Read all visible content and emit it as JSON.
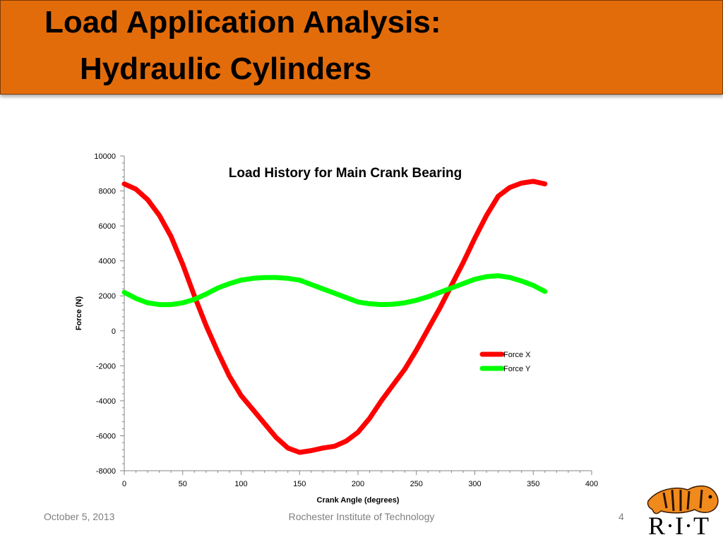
{
  "slide": {
    "title_line1": "Load Application Analysis:",
    "title_line2": "Hydraulic Cylinders",
    "footer_date": "October 5, 2013",
    "footer_org": "Rochester Institute of Technology",
    "page_number": "4",
    "logo_text": "R·I·T",
    "accent_color": "#e36c0a"
  },
  "chart_data": {
    "type": "line",
    "title": "Load History for Main Crank Bearing",
    "xlabel": "Crank Angle (degrees)",
    "ylabel": "Force (N)",
    "xlim": [
      0,
      400
    ],
    "ylim": [
      -8000,
      10000
    ],
    "x_ticks": [
      0,
      50,
      100,
      150,
      200,
      250,
      300,
      350,
      400
    ],
    "y_ticks": [
      -8000,
      -6000,
      -4000,
      -2000,
      0,
      2000,
      4000,
      6000,
      8000,
      10000
    ],
    "grid": false,
    "legend_position": "right",
    "series": [
      {
        "name": "Force X",
        "color": "#ff0000",
        "x": [
          0,
          10,
          20,
          30,
          40,
          50,
          60,
          70,
          80,
          90,
          100,
          110,
          120,
          130,
          140,
          150,
          160,
          170,
          180,
          190,
          200,
          210,
          220,
          230,
          240,
          250,
          260,
          270,
          280,
          290,
          300,
          310,
          320,
          330,
          340,
          350,
          360
        ],
        "y": [
          8400,
          8100,
          7500,
          6600,
          5400,
          3800,
          2000,
          300,
          -1200,
          -2600,
          -3700,
          -4500,
          -5300,
          -6100,
          -6700,
          -6950,
          -6850,
          -6700,
          -6600,
          -6300,
          -5800,
          -5000,
          -4000,
          -3100,
          -2200,
          -1100,
          100,
          1300,
          2600,
          3900,
          5300,
          6600,
          7700,
          8200,
          8450,
          8550,
          8400
        ]
      },
      {
        "name": "Force Y",
        "color": "#00ff00",
        "x": [
          0,
          10,
          20,
          30,
          40,
          50,
          60,
          70,
          80,
          90,
          100,
          110,
          120,
          130,
          140,
          150,
          160,
          170,
          180,
          190,
          200,
          210,
          220,
          230,
          240,
          250,
          260,
          270,
          280,
          290,
          300,
          310,
          320,
          330,
          340,
          350,
          360
        ],
        "y": [
          2200,
          1850,
          1600,
          1500,
          1500,
          1600,
          1800,
          2100,
          2450,
          2700,
          2900,
          3000,
          3050,
          3050,
          3000,
          2900,
          2650,
          2400,
          2150,
          1900,
          1650,
          1550,
          1500,
          1520,
          1600,
          1750,
          1950,
          2200,
          2450,
          2700,
          2950,
          3100,
          3150,
          3050,
          2850,
          2600,
          2250
        ]
      }
    ]
  }
}
